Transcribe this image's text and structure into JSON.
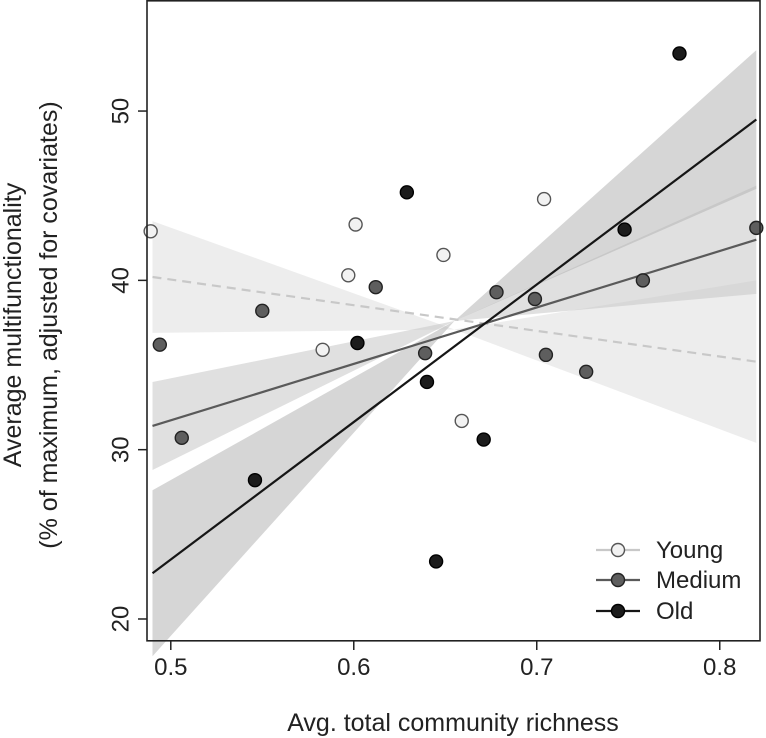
{
  "chart_data": {
    "type": "scatter",
    "xlabel": "Avg. total community richness",
    "ylabel_line1": "Average multifunctionality",
    "ylabel_line2": "(% of maximum, adjusted for covariates)",
    "xlim": [
      0.487,
      0.822
    ],
    "ylim": [
      18.7,
      56.5
    ],
    "xticks": [
      0.5,
      0.6,
      0.7,
      0.8
    ],
    "yticks": [
      20,
      30,
      40,
      50
    ],
    "xtick_labels": [
      "0.5",
      "0.6",
      "0.7",
      "0.8"
    ],
    "ytick_labels": [
      "20",
      "30",
      "40",
      "50"
    ],
    "legend_position": "bottom-right",
    "series": [
      {
        "name": "Young",
        "color": "#f2f2f2",
        "line_color": "#c8c8c8",
        "band_color": "#dedede",
        "line_style": "dashed",
        "fit": {
          "x": [
            0.49,
            0.82
          ],
          "y": [
            40.2,
            35.2
          ]
        },
        "band_upper": [
          43.5,
          37.1,
          40.0
        ],
        "band_lower": [
          36.9,
          37.1,
          30.4
        ],
        "points": [
          {
            "x": 0.489,
            "y": 42.9
          },
          {
            "x": 0.583,
            "y": 35.9
          },
          {
            "x": 0.597,
            "y": 40.3
          },
          {
            "x": 0.601,
            "y": 43.3
          },
          {
            "x": 0.649,
            "y": 41.5
          },
          {
            "x": 0.659,
            "y": 31.7
          },
          {
            "x": 0.704,
            "y": 44.8
          }
        ]
      },
      {
        "name": "Medium",
        "color": "#5e5e5e",
        "line_color": "#5a5a5a",
        "band_color": "#c6c6c6",
        "line_style": "solid",
        "fit": {
          "x": [
            0.49,
            0.82
          ],
          "y": [
            31.4,
            42.4
          ]
        },
        "band_upper": [
          34.0,
          37.6,
          45.6
        ],
        "band_lower": [
          28.8,
          37.6,
          39.2
        ],
        "points": [
          {
            "x": 0.494,
            "y": 36.2
          },
          {
            "x": 0.506,
            "y": 30.7
          },
          {
            "x": 0.55,
            "y": 38.2
          },
          {
            "x": 0.612,
            "y": 39.6
          },
          {
            "x": 0.639,
            "y": 35.7
          },
          {
            "x": 0.678,
            "y": 39.3
          },
          {
            "x": 0.699,
            "y": 38.9
          },
          {
            "x": 0.705,
            "y": 35.6
          },
          {
            "x": 0.727,
            "y": 34.6
          },
          {
            "x": 0.758,
            "y": 40.0
          },
          {
            "x": 0.82,
            "y": 43.1
          }
        ]
      },
      {
        "name": "Old",
        "color": "#1c1c1c",
        "line_color": "#161616",
        "band_color": "#b4b4b4",
        "line_style": "solid",
        "fit": {
          "x": [
            0.49,
            0.82
          ],
          "y": [
            22.7,
            49.5
          ]
        },
        "band_upper": [
          27.6,
          37.6,
          53.6
        ],
        "band_lower": [
          17.8,
          37.6,
          45.4
        ],
        "points": [
          {
            "x": 0.546,
            "y": 28.2
          },
          {
            "x": 0.602,
            "y": 36.3
          },
          {
            "x": 0.629,
            "y": 45.2
          },
          {
            "x": 0.64,
            "y": 34.0
          },
          {
            "x": 0.645,
            "y": 23.4
          },
          {
            "x": 0.671,
            "y": 30.6
          },
          {
            "x": 0.748,
            "y": 43.0
          },
          {
            "x": 0.778,
            "y": 53.4
          }
        ]
      }
    ]
  }
}
